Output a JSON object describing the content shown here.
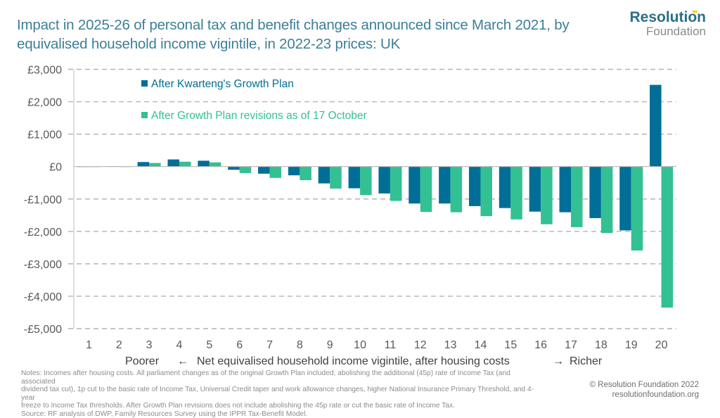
{
  "header": {
    "title": "Impact in 2025-26 of personal tax and benefit changes announced since March 2021, by equivalised household income vigintile, in 2022-23 prices: UK"
  },
  "logo": {
    "line1": "Resolution",
    "line2": "Foundation"
  },
  "colors": {
    "series1": "#006e96",
    "series2": "#33c093",
    "title": "#3d7f98",
    "grid": "#b4b4b4",
    "axis_text": "#595959"
  },
  "chart_data": {
    "type": "bar",
    "title": "Impact in 2025-26 of personal tax and benefit changes announced since March 2021, by equivalised household income vigintile, in 2022-23 prices: UK",
    "xlabel": "Net equivalised household income vigintile, after housing costs",
    "xlabel_left": "Poorer",
    "xlabel_right": "Richer",
    "xlabel_left_arrow": "←",
    "xlabel_right_arrow": "→",
    "ylabel": "",
    "ylim": [
      -5000,
      3000
    ],
    "yticks": [
      3000,
      2000,
      1000,
      0,
      -1000,
      -2000,
      -3000,
      -4000,
      -5000
    ],
    "ytick_labels": [
      "£3,000",
      "£2,000",
      "£1,000",
      "£0",
      "-£1,000",
      "-£2,000",
      "-£3,000",
      "-£4,000",
      "-£5,000"
    ],
    "grid": true,
    "legend_position": "top-left",
    "categories": [
      "1",
      "2",
      "3",
      "4",
      "5",
      "6",
      "7",
      "8",
      "9",
      "10",
      "11",
      "12",
      "13",
      "14",
      "15",
      "16",
      "17",
      "18",
      "19",
      "20"
    ],
    "series": [
      {
        "name": "After Kwarteng's Growth Plan",
        "color": "#006e96",
        "values": [
          0,
          10,
          140,
          220,
          180,
          -100,
          -220,
          -270,
          -520,
          -670,
          -830,
          -1140,
          -1140,
          -1220,
          -1280,
          -1390,
          -1410,
          -1590,
          -1970,
          2520
        ]
      },
      {
        "name": "After Growth Plan revisions as of 17 October",
        "color": "#33c093",
        "values": [
          0,
          -10,
          110,
          150,
          130,
          -200,
          -350,
          -420,
          -680,
          -880,
          -1060,
          -1400,
          -1410,
          -1530,
          -1630,
          -1780,
          -1870,
          -2050,
          -2590,
          -4350
        ]
      }
    ]
  },
  "footer": {
    "notes": [
      "Notes:  Incomes after housing costs. All parliament changes as of the original Growth Plan included; abolishing the additional (45p) rate of Income Tax (and associated",
      "dividend tax cut), 1p cut to the basic rate of Income Tax, Universal Credit taper and work allowance changes, higher National Insurance Primary Threshold, and 4-year",
      "freeze to Income Tax thresholds. After Growth Plan revisions does not include abolishing the 45p rate or cut the basic rate of Income Tax.",
      "Source: RF analysis of DWP, Family Resources Survey using the IPPR Tax-Benefit Model."
    ],
    "copyright": "© Resolution Foundation 2022",
    "website": "resolutionfoundation.org"
  }
}
